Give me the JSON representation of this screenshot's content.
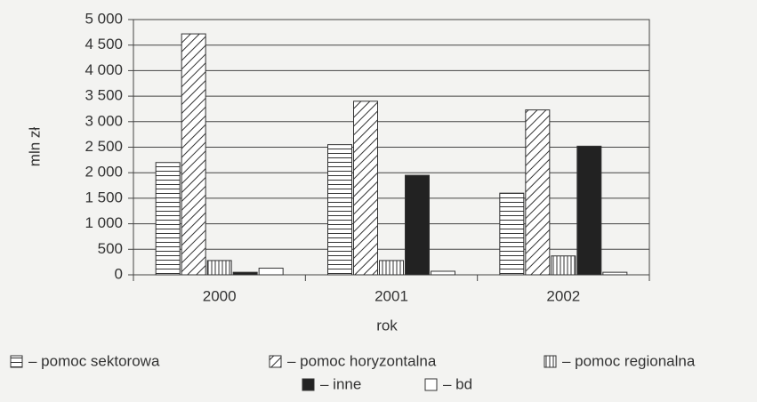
{
  "chart_data": {
    "type": "bar",
    "x_label": "rok",
    "y_label": "mln zł",
    "categories": [
      "2000",
      "2001",
      "2002"
    ],
    "series": [
      {
        "name": "– pomoc sektorowa",
        "color": "#333333",
        "pattern": "horizontal",
        "values": [
          2200,
          2550,
          1600
        ]
      },
      {
        "name": "– pomoc horyzontalna",
        "color": "#333333",
        "pattern": "diagonal",
        "values": [
          4720,
          3400,
          3230
        ]
      },
      {
        "name": "– pomoc regionalna",
        "color": "#333333",
        "pattern": "vertical",
        "values": [
          280,
          280,
          370
        ]
      },
      {
        "name": "– inne",
        "color": "#222222",
        "pattern": "solid",
        "values": [
          50,
          1950,
          2520
        ]
      },
      {
        "name": "– bd",
        "color": "#ffffff",
        "pattern": "none",
        "values": [
          130,
          70,
          50
        ]
      }
    ],
    "ylim": [
      0,
      5000
    ],
    "yticks": [
      0,
      500,
      {
        "value": 1000,
        "label": "1 000"
      },
      {
        "value": 1500,
        "label": "1 500"
      },
      {
        "value": 2000,
        "label": "2 000"
      },
      {
        "value": 2500,
        "label": "2 500"
      },
      {
        "value": 3000,
        "label": "3 000"
      },
      {
        "value": 3500,
        "label": "3 500"
      },
      {
        "value": 4000,
        "label": "4 000"
      },
      {
        "value": 4500,
        "label": "4 500"
      },
      {
        "value": 5000,
        "label": "5 000"
      }
    ],
    "grid": true,
    "legend": "bottom"
  }
}
